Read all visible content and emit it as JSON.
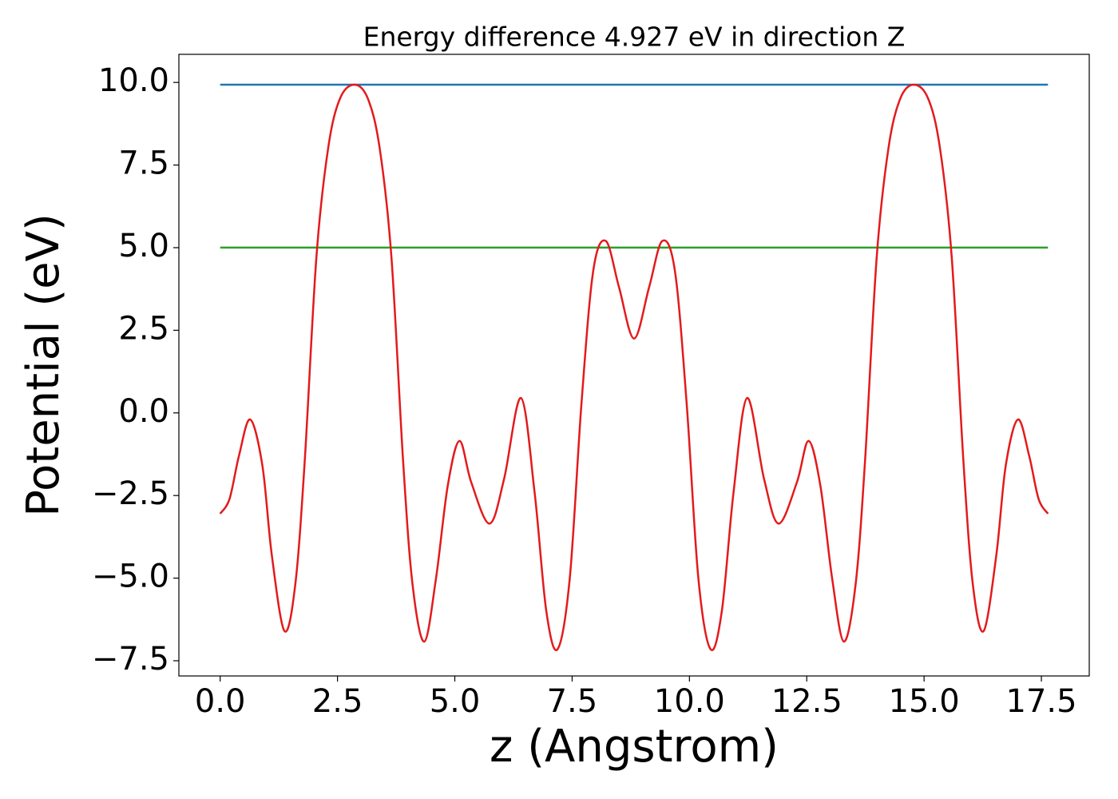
{
  "chart_data": {
    "type": "line",
    "title": "Energy difference 4.927 eV in direction Z",
    "xlabel": "z (Angstrom)",
    "ylabel": "Potential (eV)",
    "xlim": [
      -0.88,
      18.52
    ],
    "ylim": [
      -7.96,
      10.85
    ],
    "xticks": [
      {
        "value": 0,
        "label": "0.0"
      },
      2.5,
      {
        "value": 5,
        "label": "5.0"
      },
      7.5,
      {
        "value": 10,
        "label": "10.0"
      },
      12.5,
      {
        "value": 15,
        "label": "15.0"
      },
      17.5
    ],
    "yticks": [
      {
        "value": -7.5,
        "label": "−7.5"
      },
      {
        "value": -5,
        "label": "−5.0"
      },
      {
        "value": -2.5,
        "label": "−2.5"
      },
      {
        "value": 0,
        "label": "0.0"
      },
      2.5,
      {
        "value": 5,
        "label": "5.0"
      },
      7.5,
      {
        "value": 10,
        "label": "10.0"
      }
    ],
    "series": [
      {
        "color": "#1f77b4",
        "x": [
          0,
          17.64
        ],
        "values": [
          9.93,
          9.93
        ]
      },
      {
        "color": "#2ca02c",
        "x": [
          0,
          17.64
        ],
        "values": [
          5.003,
          5.003
        ]
      },
      {
        "color": "#e31a1c",
        "x": [
          0,
          0.2,
          0.4,
          0.64,
          0.9,
          1.1,
          1.37,
          1.6,
          1.8,
          2.05,
          2.3,
          2.55,
          2.86,
          3.15,
          3.4,
          3.65,
          3.9,
          4.1,
          4.35,
          4.6,
          4.85,
          5.1,
          5.35,
          5.74,
          6.05,
          6.41,
          6.7,
          6.95,
          7.19,
          7.45,
          7.7,
          7.95,
          8.22,
          8.5,
          8.82,
          9.14,
          9.42,
          9.69,
          9.94,
          10.19,
          10.45,
          10.69,
          10.94,
          11.23,
          11.59,
          11.9,
          12.29,
          12.54,
          12.79,
          13.04,
          13.29,
          13.54,
          13.74,
          13.99,
          14.24,
          14.49,
          14.78,
          15.09,
          15.34,
          15.59,
          15.84,
          16.04,
          16.27,
          16.54,
          16.74,
          17.0,
          17.24,
          17.44,
          17.64
        ],
        "values": [
          -3.05,
          -2.6,
          -1.3,
          -0.2,
          -1.6,
          -4.3,
          -6.6,
          -5.2,
          -1.5,
          4.7,
          8.0,
          9.5,
          9.93,
          9.5,
          8.0,
          4.7,
          -1.5,
          -5.2,
          -6.92,
          -5.0,
          -2.2,
          -0.85,
          -2.1,
          -3.35,
          -2.0,
          0.45,
          -2.4,
          -6.0,
          -7.15,
          -5.0,
          0.3,
          4.3,
          5.2,
          3.8,
          2.25,
          3.8,
          5.2,
          4.3,
          0.3,
          -5.0,
          -7.15,
          -6.0,
          -2.4,
          0.45,
          -2.0,
          -3.35,
          -2.1,
          -0.85,
          -2.2,
          -5.0,
          -6.92,
          -5.2,
          -1.5,
          4.7,
          8.0,
          9.5,
          9.93,
          9.5,
          8.0,
          4.7,
          -1.5,
          -5.2,
          -6.6,
          -4.3,
          -1.6,
          -0.2,
          -1.3,
          -2.6,
          -3.05
        ]
      }
    ]
  }
}
